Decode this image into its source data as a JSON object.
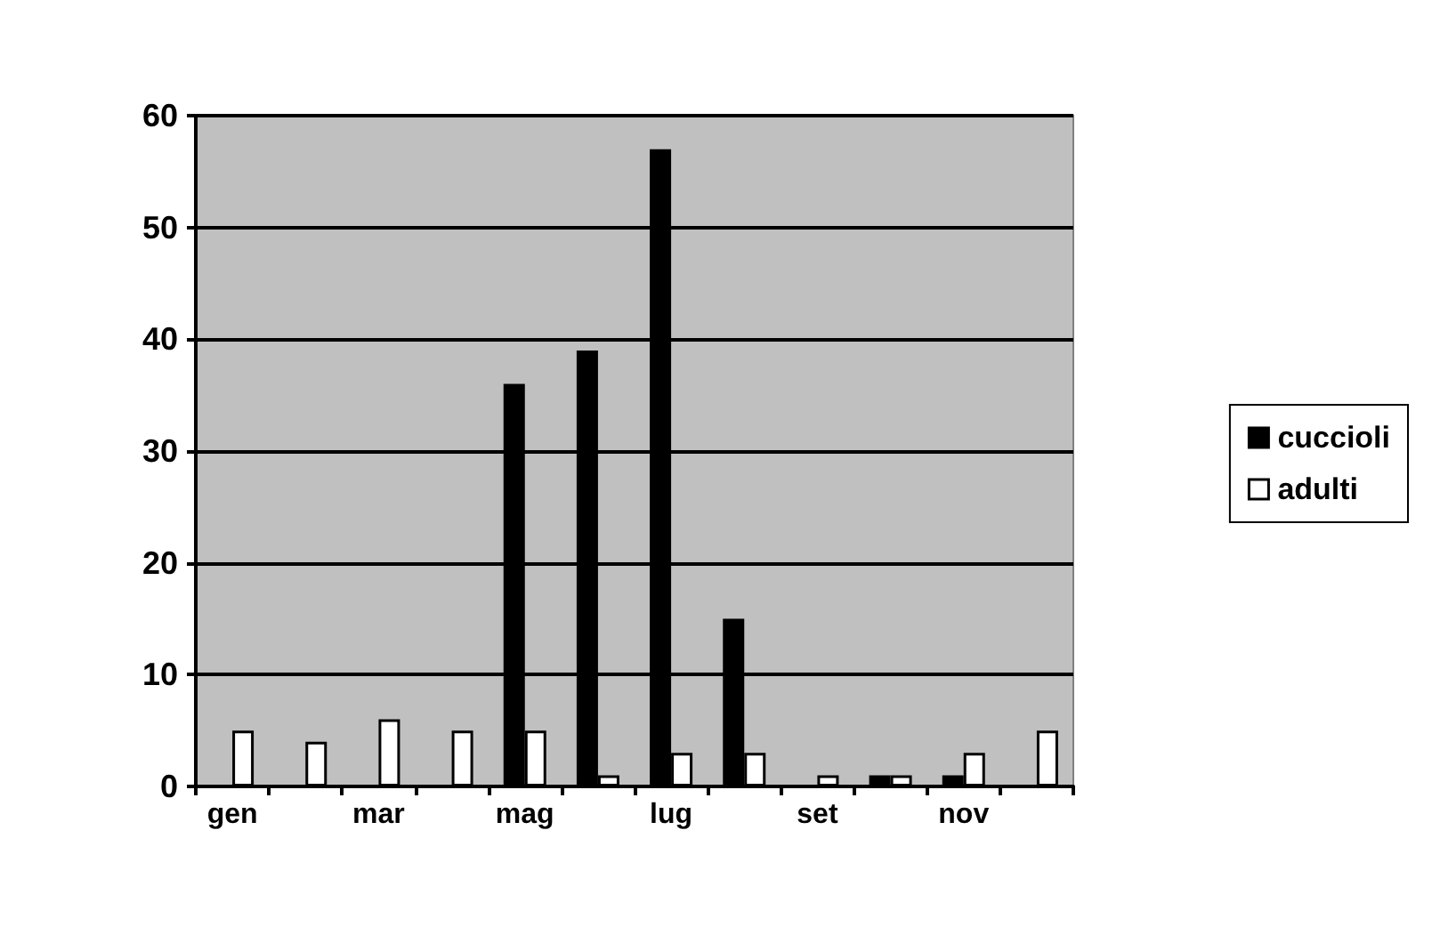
{
  "chart_data": {
    "type": "bar",
    "categories": [
      "gen",
      null,
      "mar",
      null,
      "mag",
      null,
      "lug",
      null,
      "set",
      null,
      "nov",
      null
    ],
    "series": [
      {
        "name": "cuccioli",
        "color": "#000000",
        "values": [
          0,
          0,
          0,
          0,
          36,
          39,
          57,
          15,
          0,
          1,
          1,
          0
        ]
      },
      {
        "name": "adulti",
        "color": "#ffffff",
        "values": [
          5,
          4,
          6,
          5,
          5,
          1,
          3,
          3,
          1,
          1,
          3,
          5
        ]
      }
    ],
    "ylim": [
      0,
      60
    ],
    "yticks": [
      0,
      10,
      20,
      30,
      40,
      50,
      60
    ],
    "grid": "y",
    "legend": "right"
  }
}
